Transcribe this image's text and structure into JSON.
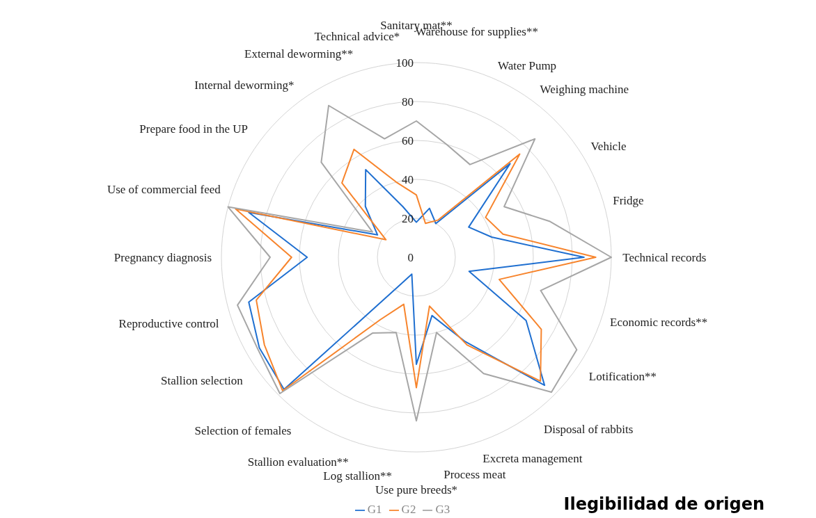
{
  "chart_data": {
    "type": "radar",
    "categories": [
      "Sanitary mat**",
      "Warehouse for supplies**",
      "Water Pump",
      "Weighing machine",
      "Vehicle",
      "Fridge",
      "Technical records",
      "Economic records**",
      "Lotification**",
      "Disposal of rabbits",
      "Excreta management",
      "Process meat",
      "Use pure breeds*",
      "Log stallion**",
      "Stallion evaluation**",
      "Selection of females",
      "Stallion selection",
      "Reproductive control",
      "Pregnancy diagnosis",
      "Use of commercial feed",
      "Prepare food in the UP",
      "Internal deworming*",
      "External deworming**",
      "Technical advice*"
    ],
    "series": [
      {
        "name": "G1",
        "color": "#1f6fd0",
        "values": [
          18,
          26,
          20,
          68,
          31,
          40,
          86,
          28,
          65,
          93,
          50,
          31,
          55,
          9,
          16,
          96,
          93,
          89,
          56,
          89,
          23,
          37,
          52,
          27
        ]
      },
      {
        "name": "G2",
        "color": "#f7842c",
        "values": [
          32,
          18,
          22,
          75,
          41,
          46,
          92,
          44,
          74,
          90,
          52,
          26,
          67,
          25,
          37,
          97,
          90,
          85,
          64,
          96,
          18,
          54,
          64,
          40
        ]
      },
      {
        "name": "G3",
        "color": "#a6a6a6",
        "values": [
          70,
          60,
          55,
          86,
          52,
          71,
          100,
          66,
          95,
          98,
          69,
          40,
          84,
          40,
          45,
          99,
          94,
          95,
          75,
          100,
          26,
          69,
          90,
          63
        ]
      }
    ],
    "ylim": [
      0,
      100
    ],
    "yticks": [
      0,
      20,
      40,
      60,
      80,
      100
    ],
    "grid": true,
    "legend": "bottom",
    "marker": "none",
    "line_style": "solid",
    "annotations": [
      "Ilegibilidad de origen"
    ]
  }
}
